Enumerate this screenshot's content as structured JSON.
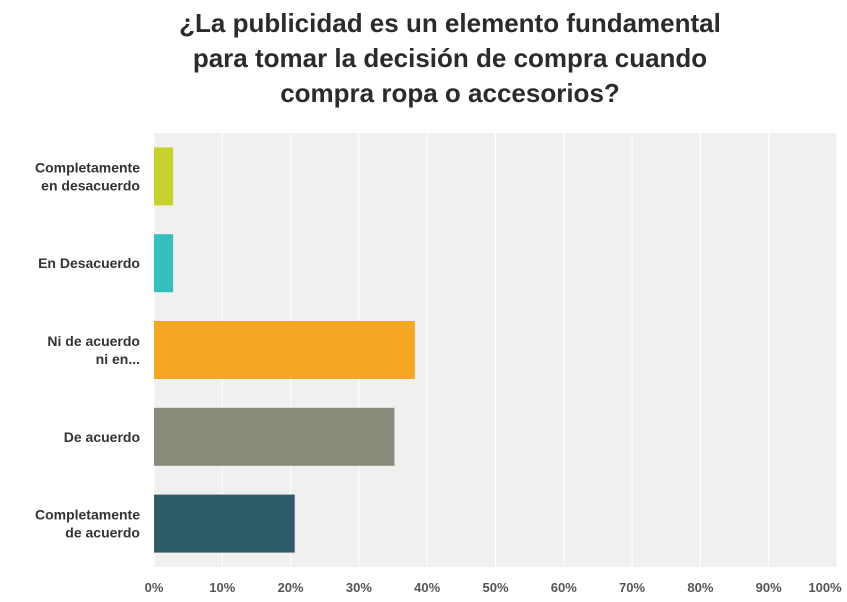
{
  "chart_data": {
    "type": "bar",
    "orientation": "horizontal",
    "title_lines": [
      "¿La publicidad es un elemento fundamental",
      "para tomar la decisión de compra cuando",
      "compra ropa o accesorios?"
    ],
    "categories": [
      [
        "Completamente",
        "en desacuerdo"
      ],
      [
        "En Desacuerdo"
      ],
      [
        "Ni de acuerdo",
        "ni en..."
      ],
      [
        "De acuerdo"
      ],
      [
        "Completamente",
        "de acuerdo"
      ]
    ],
    "values": [
      2.8,
      2.8,
      38.2,
      35.2,
      20.6
    ],
    "colors": [
      "#c8d22e",
      "#35bfbf",
      "#f5a623",
      "#8a8a7a",
      "#2d5c68"
    ],
    "xlim": [
      0,
      100
    ],
    "xticks": [
      "0%",
      "10%",
      "20%",
      "30%",
      "40%",
      "50%",
      "60%",
      "70%",
      "80%",
      "90%",
      "100%"
    ],
    "grid": true,
    "plot_background": "#f0f0f0",
    "grid_color": "#ffffff"
  }
}
